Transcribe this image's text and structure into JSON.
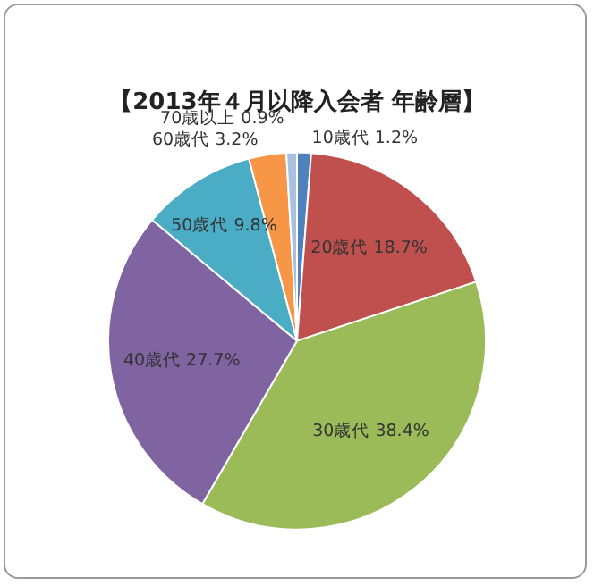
{
  "chart_data": {
    "type": "pie",
    "title": "【2013年４月以降入会者 年齢層】",
    "categories": [
      "10歳代",
      "20歳代",
      "30歳代",
      "40歳代",
      "50歳代",
      "60歳代",
      "70歳以上"
    ],
    "values": [
      1.2,
      18.7,
      38.4,
      27.7,
      9.8,
      3.2,
      0.9
    ],
    "value_labels": [
      "1.2%",
      "18.7%",
      "38.4%",
      "27.7%",
      "9.8%",
      "3.2%",
      "0.9%"
    ],
    "colors": [
      "#4f81bd",
      "#c0504d",
      "#9bbb59",
      "#8064a2",
      "#4bacc6",
      "#f79646",
      "#a9c1e0"
    ],
    "legend": false
  }
}
